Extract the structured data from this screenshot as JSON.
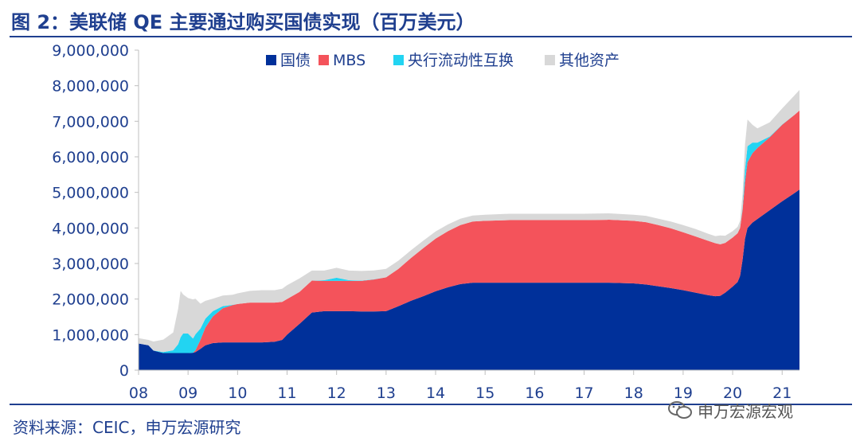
{
  "title": "图 2：美联储 QE 主要通过购买国债实现（百万美元）",
  "source": "资料来源：CEIC，申万宏源研究",
  "watermark": "申万宏源宏观",
  "colors": {
    "treasuries": "#00309a",
    "mbs": "#f4535b",
    "swaps": "#22d4f2",
    "other": "#d8d8d8",
    "axis_text": "#1f3f8f"
  },
  "chart_data": {
    "type": "area",
    "stacked": true,
    "title": "",
    "xlabel": "",
    "ylabel": "",
    "ylim": [
      0,
      9000000
    ],
    "yticks": [
      0,
      1000000,
      2000000,
      3000000,
      4000000,
      5000000,
      6000000,
      7000000,
      8000000,
      9000000
    ],
    "ytick_labels": [
      "0",
      "1,000,000",
      "2,000,000",
      "3,000,000",
      "4,000,000",
      "5,000,000",
      "6,000,000",
      "7,000,000",
      "8,000,000",
      "9,000,000"
    ],
    "xlim": [
      2008.0,
      2021.35
    ],
    "xticks": [
      2008,
      2009,
      2010,
      2011,
      2012,
      2013,
      2014,
      2015,
      2016,
      2017,
      2018,
      2019,
      2020,
      2021
    ],
    "xtick_labels": [
      "08",
      "09",
      "10",
      "11",
      "12",
      "13",
      "14",
      "15",
      "16",
      "17",
      "18",
      "19",
      "20",
      "21"
    ],
    "legend_position": "top-center",
    "grid": false,
    "x": [
      2008.0,
      2008.2,
      2008.3,
      2008.5,
      2008.7,
      2008.8,
      2008.85,
      2008.9,
      2009.0,
      2009.1,
      2009.15,
      2009.25,
      2009.35,
      2009.5,
      2009.7,
      2009.9,
      2010.0,
      2010.25,
      2010.5,
      2010.75,
      2010.9,
      2011.0,
      2011.25,
      2011.5,
      2011.75,
      2012.0,
      2012.25,
      2012.5,
      2012.75,
      2013.0,
      2013.25,
      2013.5,
      2013.75,
      2014.0,
      2014.25,
      2014.5,
      2014.75,
      2015.0,
      2015.5,
      2016.0,
      2016.5,
      2017.0,
      2017.5,
      2018.0,
      2018.25,
      2018.5,
      2018.75,
      2019.0,
      2019.25,
      2019.5,
      2019.65,
      2019.75,
      2019.85,
      2020.0,
      2020.1,
      2020.15,
      2020.2,
      2020.25,
      2020.3,
      2020.4,
      2020.5,
      2020.75,
      2021.0,
      2021.25,
      2021.35
    ],
    "series": [
      {
        "name": "国债",
        "color_key": "treasuries",
        "values": [
          750000,
          700000,
          550000,
          480000,
          480000,
          480000,
          480000,
          480000,
          480000,
          490000,
          510000,
          600000,
          700000,
          760000,
          780000,
          780000,
          780000,
          780000,
          780000,
          800000,
          850000,
          1000000,
          1300000,
          1620000,
          1660000,
          1660000,
          1660000,
          1650000,
          1650000,
          1660000,
          1800000,
          1950000,
          2080000,
          2220000,
          2330000,
          2420000,
          2460000,
          2460000,
          2460000,
          2460000,
          2460000,
          2460000,
          2460000,
          2440000,
          2410000,
          2360000,
          2310000,
          2250000,
          2180000,
          2110000,
          2080000,
          2090000,
          2180000,
          2350000,
          2480000,
          2650000,
          3100000,
          3700000,
          4000000,
          4150000,
          4250000,
          4500000,
          4750000,
          4980000,
          5080000
        ]
      },
      {
        "name": "MBS",
        "color_key": "mbs",
        "values": [
          0,
          0,
          0,
          0,
          0,
          0,
          0,
          0,
          0,
          0,
          50000,
          250000,
          500000,
          750000,
          960000,
          1050000,
          1080000,
          1120000,
          1120000,
          1100000,
          1070000,
          1000000,
          900000,
          900000,
          850000,
          850000,
          850000,
          860000,
          900000,
          950000,
          1050000,
          1200000,
          1350000,
          1480000,
          1580000,
          1660000,
          1720000,
          1740000,
          1760000,
          1760000,
          1760000,
          1760000,
          1770000,
          1760000,
          1750000,
          1720000,
          1680000,
          1630000,
          1580000,
          1530000,
          1490000,
          1450000,
          1400000,
          1380000,
          1370000,
          1350000,
          1400000,
          1600000,
          1850000,
          1950000,
          2000000,
          2050000,
          2150000,
          2200000,
          2220000
        ]
      },
      {
        "name": "央行流动性互换",
        "color_key": "swaps",
        "values": [
          0,
          0,
          5000,
          30000,
          80000,
          250000,
          450000,
          550000,
          550000,
          400000,
          450000,
          320000,
          250000,
          150000,
          60000,
          10000,
          0,
          0,
          0,
          0,
          0,
          0,
          0,
          0,
          20000,
          90000,
          20000,
          10000,
          5000,
          0,
          0,
          0,
          0,
          0,
          0,
          0,
          0,
          0,
          0,
          0,
          0,
          0,
          0,
          0,
          0,
          0,
          0,
          0,
          0,
          0,
          0,
          0,
          0,
          0,
          0,
          0,
          50000,
          350000,
          450000,
          300000,
          150000,
          20000,
          10000,
          0,
          0
        ]
      },
      {
        "name": "其他资产",
        "color_key": "other",
        "values": [
          150000,
          150000,
          250000,
          350000,
          500000,
          1000000,
          1300000,
          1100000,
          1000000,
          1100000,
          1000000,
          700000,
          500000,
          350000,
          300000,
          280000,
          300000,
          330000,
          350000,
          350000,
          370000,
          390000,
          380000,
          280000,
          270000,
          280000,
          270000,
          270000,
          250000,
          240000,
          230000,
          220000,
          210000,
          200000,
          190000,
          180000,
          170000,
          170000,
          180000,
          180000,
          180000,
          180000,
          180000,
          170000,
          180000,
          180000,
          190000,
          200000,
          210000,
          200000,
          200000,
          250000,
          200000,
          180000,
          180000,
          200000,
          400000,
          700000,
          750000,
          500000,
          400000,
          400000,
          450000,
          550000,
          580000
        ]
      }
    ]
  }
}
